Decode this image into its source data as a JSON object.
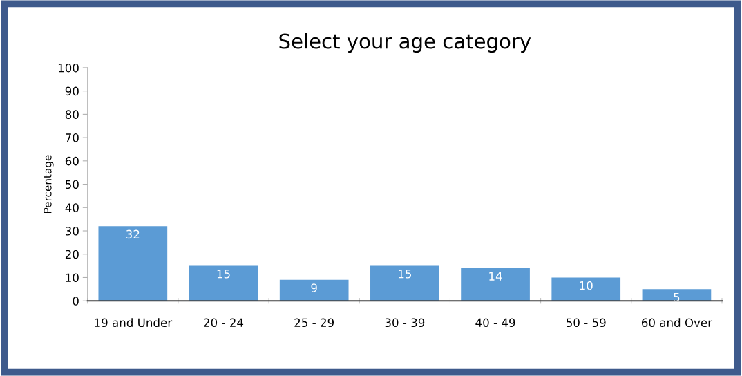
{
  "chart_data": {
    "type": "bar",
    "title": "Select your age category",
    "ylabel": "Percentage",
    "categories": [
      "19 and Under",
      "20 - 24",
      "25 - 29",
      "30 - 39",
      "40 - 49",
      "50 - 59",
      "60 and Over"
    ],
    "values": [
      32,
      15,
      9,
      15,
      14,
      10,
      5
    ],
    "color": "#5b9bd5",
    "ylim": [
      0,
      100
    ],
    "yticks": [
      0,
      10,
      20,
      30,
      40,
      50,
      60,
      70,
      80,
      90,
      100
    ],
    "data_labels": true,
    "grid": false,
    "legend": false
  }
}
